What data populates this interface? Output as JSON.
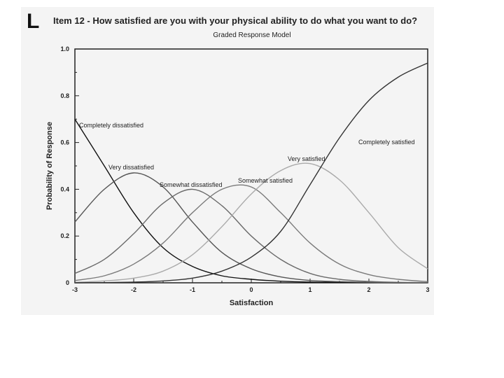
{
  "panel_letter": "L",
  "item_title": "Item 12 - How satisfied are you with your physical ability to do what you want to do?",
  "chart_data": {
    "type": "line",
    "title": "Graded Response Model",
    "xlabel": "Satisfaction",
    "ylabel": "Probability of Response",
    "xlim": [
      -3,
      3
    ],
    "ylim": [
      0,
      1.0
    ],
    "xticks": [
      -3,
      -2,
      -1,
      0,
      1,
      2,
      3
    ],
    "yticks": [
      "0",
      "0.2",
      "0.4",
      "0.6",
      "0.8",
      "1.0"
    ],
    "grid": false,
    "legend": "none",
    "x": [
      -3,
      -2.5,
      -2,
      -1.5,
      -1,
      -0.5,
      0,
      0.5,
      1,
      1.5,
      2,
      2.5,
      3
    ],
    "series": [
      {
        "name": "Completely dissatisfied",
        "color": "#111111",
        "values": [
          0.7,
          0.5,
          0.3,
          0.15,
          0.07,
          0.03,
          0.015,
          0.007,
          0.003,
          0.002,
          0.001,
          0.0,
          0.0
        ]
      },
      {
        "name": "Very dissatisfied",
        "color": "#555555",
        "values": [
          0.26,
          0.4,
          0.47,
          0.41,
          0.26,
          0.13,
          0.06,
          0.025,
          0.01,
          0.005,
          0.002,
          0.001,
          0.0
        ]
      },
      {
        "name": "Somewhat dissatisfied",
        "color": "#6a6a6a",
        "values": [
          0.04,
          0.1,
          0.21,
          0.34,
          0.4,
          0.33,
          0.2,
          0.1,
          0.04,
          0.015,
          0.006,
          0.002,
          0.001
        ]
      },
      {
        "name": "Somewhat satisfied",
        "color": "#7a7a7a",
        "values": [
          0.01,
          0.03,
          0.08,
          0.17,
          0.3,
          0.4,
          0.41,
          0.3,
          0.17,
          0.08,
          0.035,
          0.015,
          0.005
        ]
      },
      {
        "name": "Very satisfied",
        "color": "#aaaaaa",
        "values": [
          0.002,
          0.008,
          0.02,
          0.05,
          0.12,
          0.24,
          0.38,
          0.48,
          0.51,
          0.44,
          0.3,
          0.15,
          0.06
        ]
      },
      {
        "name": "Completely satisfied",
        "color": "#333333",
        "values": [
          0.0,
          0.001,
          0.003,
          0.008,
          0.02,
          0.05,
          0.11,
          0.22,
          0.42,
          0.62,
          0.78,
          0.88,
          0.94
        ]
      }
    ],
    "annotations": [
      "Completely dissatisfied",
      "Very dissatisfied",
      "Somewhat dissatisfied",
      "Somewhat satisfied",
      "Very satisfied",
      "Completely satisfied"
    ]
  }
}
